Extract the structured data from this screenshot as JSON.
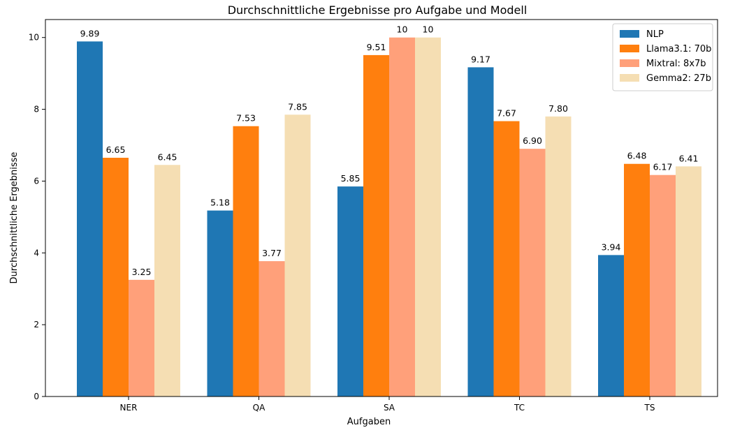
{
  "chart_data": {
    "type": "bar",
    "title": "Durchschnittliche Ergebnisse pro Aufgabe und Modell",
    "xlabel": "Aufgaben",
    "ylabel": "Durchschnittliche Ergebnisse",
    "categories": [
      "NER",
      "QA",
      "SA",
      "TC",
      "TS"
    ],
    "ylim": [
      0,
      10.5
    ],
    "yticks": [
      0,
      2,
      4,
      6,
      8,
      10
    ],
    "grid": false,
    "legend_position": "top-right",
    "series": [
      {
        "name": "NLP",
        "color": "#1f77b4",
        "values": [
          9.89,
          5.18,
          5.85,
          9.17,
          3.94
        ],
        "labels": [
          "9.89",
          "5.18",
          "5.85",
          "9.17",
          "3.94"
        ]
      },
      {
        "name": "Llama3.1: 70b",
        "color": "#ff7f0e",
        "values": [
          6.65,
          7.53,
          9.51,
          7.67,
          6.48
        ],
        "labels": [
          "6.65",
          "7.53",
          "9.51",
          "7.67",
          "6.48"
        ]
      },
      {
        "name": "Mixtral: 8x7b",
        "color": "#ffa07a",
        "values": [
          3.25,
          3.77,
          10,
          6.9,
          6.17
        ],
        "labels": [
          "3.25",
          "3.77",
          "10",
          "6.90",
          "6.17"
        ]
      },
      {
        "name": "Gemma2: 27b",
        "color": "#f5deb3",
        "values": [
          6.45,
          7.85,
          10,
          7.8,
          6.41
        ],
        "labels": [
          "6.45",
          "7.85",
          "10",
          "7.80",
          "6.41"
        ]
      }
    ]
  }
}
